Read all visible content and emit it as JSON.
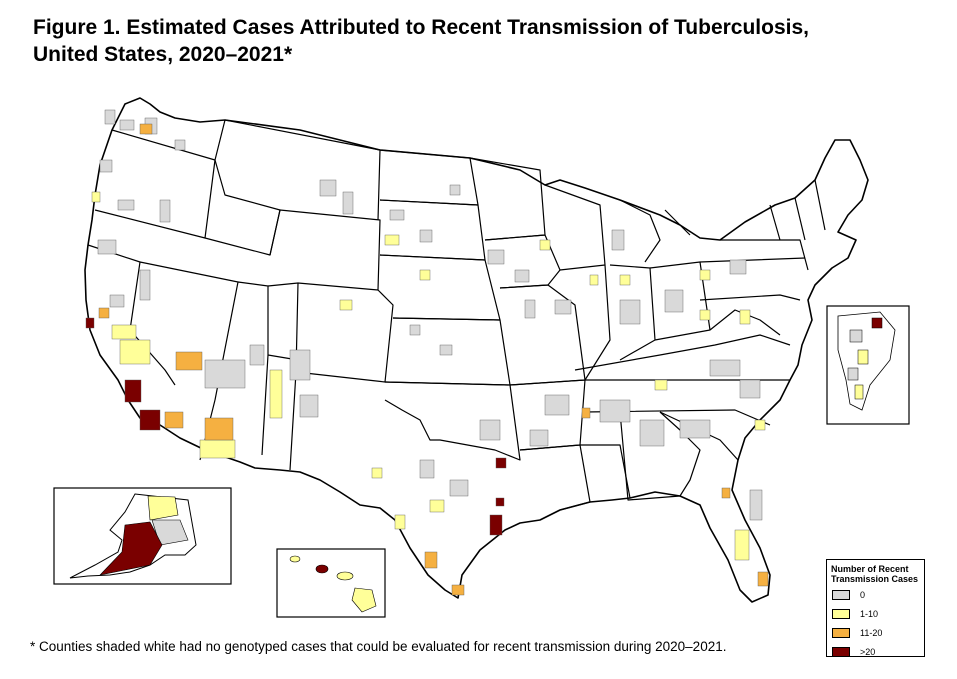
{
  "figure": {
    "title_line1": "Figure 1.  Estimated Cases Attributed to Recent Transmission of Tuberculosis,",
    "title_line2": "United States, 2020–2021*"
  },
  "legend": {
    "title_line1": "Number of Recent",
    "title_line2": "Transmission Cases",
    "items": [
      {
        "label": "0",
        "color": "#d9d9d9"
      },
      {
        "label": "1-10",
        "color": "#ffff99"
      },
      {
        "label": "11-20",
        "color": "#f5b041"
      },
      {
        "label": ">20",
        "color": "#7a0000"
      }
    ]
  },
  "footnote": "* Counties shaded white had no genotyped cases that could be evaluated for recent transmission during 2020–2021.",
  "colors": {
    "none": "#ffffff",
    "zero": "#d9d9d9",
    "low": "#ffff99",
    "mid": "#f5b041",
    "high": "#7a0000",
    "border": "#000000"
  },
  "insets": [
    "alaska",
    "hawaii",
    "northeast"
  ]
}
